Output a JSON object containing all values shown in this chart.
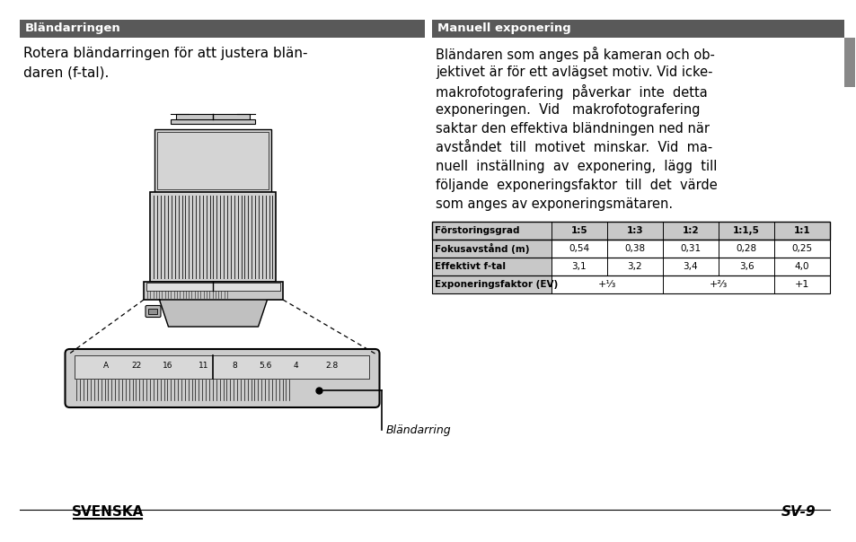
{
  "bg_color": "#ffffff",
  "left_header": "Bländarringen",
  "right_header": "Manuell exponering",
  "header_bg": "#595959",
  "header_text_color": "#ffffff",
  "caption": "Bländarring",
  "footer_left": "SVENSKA",
  "footer_right": "SV-9",
  "left_body_line1": "Rotera bländarringen för att justera blän-",
  "left_body_line2": "daren (f-tal).",
  "right_text_lines": [
    "Bländaren som anges på kameran och ob-",
    "jektivet är för ett avlägset motiv. Vid icke-",
    "makrofotografering  påverkar  inte  detta",
    "exponeringen.  Vid   makrofotografering",
    "saktar den effektiva bländningen ned när",
    "avståndet  till  motivet  minskar.  Vid  ma-",
    "nuell  inställning  av  exponering,  lägg  till",
    "följande  exponeringsfaktor  till  det  värde",
    "som anges av exponeringsmätaren."
  ],
  "table_headers": [
    "Förstoringsgrad",
    "1:5",
    "1:3",
    "1:2",
    "1:1,5",
    "1:1"
  ],
  "table_row1": [
    "Fokusavstånd (m)",
    "0,54",
    "0,38",
    "0,31",
    "0,28",
    "0,25"
  ],
  "table_row2": [
    "Effektivt f-tal",
    "3,1",
    "3,2",
    "3,4",
    "3,6",
    "4,0"
  ],
  "table_row3_label": "Exponeringsfaktor (EV)",
  "table_row3_vals": [
    "+¹⁄₃",
    "+²⁄₃",
    "+1"
  ],
  "fstop_labels": [
    "A",
    "22",
    "16",
    "11",
    "8",
    "5.6",
    "4",
    "2.8"
  ],
  "header_bg_dark": "#888888"
}
